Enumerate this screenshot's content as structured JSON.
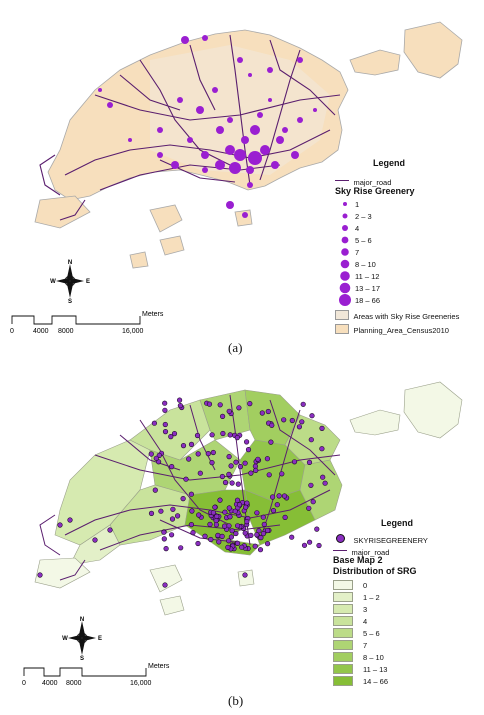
{
  "panel_a": {
    "caption": "(a)",
    "legend": {
      "title": "Legend",
      "road_label": "major_road",
      "section_title": "Sky Rise Greenery",
      "classes": [
        "1",
        "2 – 3",
        "4",
        "5 – 6",
        "7",
        "8 – 10",
        "11 – 12",
        "13 – 17",
        "18 – 66"
      ],
      "area_labels": [
        "Areas with Sky Rise Greeneries",
        "Planning_Area_Census2010"
      ]
    },
    "scale": {
      "unit": "Meters",
      "ticks": [
        "0",
        "4000",
        "8000",
        "16,000"
      ]
    },
    "compass": [
      "N",
      "S",
      "E",
      "W"
    ]
  },
  "panel_b": {
    "caption": "(b)",
    "legend": {
      "title": "Legend",
      "points_label": "SKYRISEGREENERY",
      "road_label": "major_road",
      "basemap_title": "Base Map 2",
      "section_title": "Distribution of SRG",
      "classes": [
        "0",
        "1 – 2",
        "3",
        "4",
        "5 – 6",
        "7",
        "8 – 10",
        "11 – 13",
        "14 – 66"
      ]
    },
    "scale": {
      "unit": "Meters",
      "ticks": [
        "0",
        "4000",
        "8000",
        "16,000"
      ]
    },
    "compass": [
      "N",
      "S",
      "E",
      "W"
    ]
  },
  "colors": {
    "land_a": "#f7dfbd",
    "land_a_stroke": "#a9a9a9",
    "road": "#5a1e6e",
    "point": "#9a1fd1",
    "point_b": "#8a2ec0",
    "green_ramp": [
      "#f3f8e6",
      "#e3f0c8",
      "#d6eab0",
      "#c9e39c",
      "#bcdc88",
      "#aed574",
      "#a2ce60",
      "#93c64b",
      "#86be36"
    ]
  }
}
